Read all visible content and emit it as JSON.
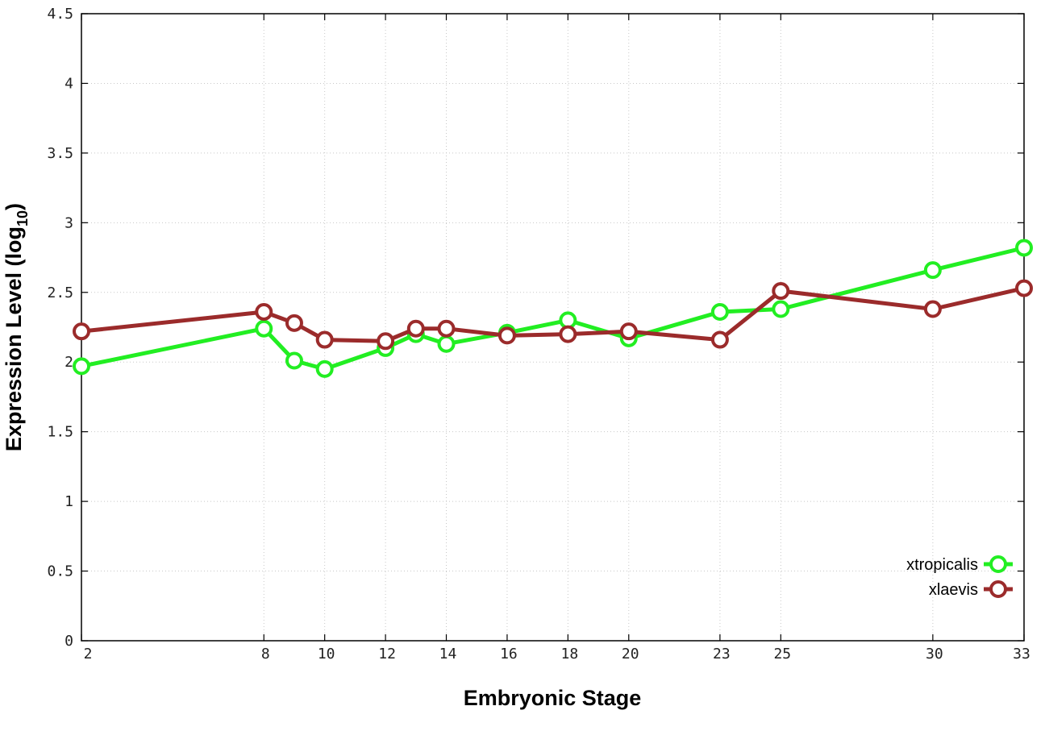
{
  "chart_data": {
    "type": "line",
    "xlabel": "Embryonic Stage",
    "ylabel": "Expression Level (log",
    "ylabel_subscript": "10",
    "ylabel_close": ")",
    "ylim": [
      0,
      4.5
    ],
    "xlim": [
      2,
      33
    ],
    "y_ticks": [
      {
        "value": 0,
        "label": "0"
      },
      {
        "value": 0.5,
        "label": "0.5"
      },
      {
        "value": 1,
        "label": "1"
      },
      {
        "value": 1.5,
        "label": "1.5"
      },
      {
        "value": 2,
        "label": "2"
      },
      {
        "value": 2.5,
        "label": "2.5"
      },
      {
        "value": 3,
        "label": "3"
      },
      {
        "value": 3.5,
        "label": "3.5"
      },
      {
        "value": 4,
        "label": "4"
      },
      {
        "value": 4.5,
        "label": "4.5"
      }
    ],
    "x_ticks": [
      {
        "value": 2,
        "label": "2"
      },
      {
        "value": 8,
        "label": "8"
      },
      {
        "value": 10,
        "label": "10"
      },
      {
        "value": 12,
        "label": "12"
      },
      {
        "value": 14,
        "label": "14"
      },
      {
        "value": 16,
        "label": "16"
      },
      {
        "value": 18,
        "label": "18"
      },
      {
        "value": 20,
        "label": "20"
      },
      {
        "value": 23,
        "label": "23"
      },
      {
        "value": 25,
        "label": "25"
      },
      {
        "value": 30,
        "label": "30"
      },
      {
        "value": 33,
        "label": "33"
      }
    ],
    "grid": true,
    "legend_position": "bottom-right",
    "series": [
      {
        "name": "xtropicalis",
        "color": "#22ee22",
        "x": [
          2,
          8,
          9,
          10,
          12,
          13,
          14,
          16,
          18,
          20,
          23,
          25,
          30,
          33
        ],
        "y": [
          1.97,
          2.24,
          2.01,
          1.95,
          2.1,
          2.2,
          2.13,
          2.21,
          2.3,
          2.17,
          2.36,
          2.38,
          2.66,
          2.82
        ]
      },
      {
        "name": "xlaevis",
        "color": "#9b2b2b",
        "x": [
          2,
          8,
          9,
          10,
          12,
          13,
          14,
          16,
          18,
          20,
          23,
          25,
          30,
          33
        ],
        "y": [
          2.22,
          2.36,
          2.28,
          2.16,
          2.15,
          2.24,
          2.24,
          2.19,
          2.2,
          2.22,
          2.16,
          2.51,
          2.38,
          2.53
        ]
      }
    ]
  }
}
